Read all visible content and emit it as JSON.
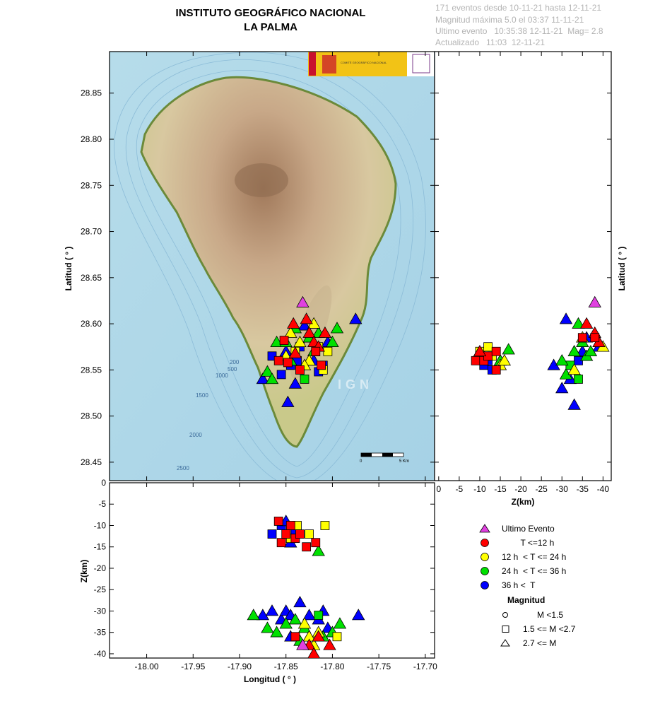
{
  "header": {
    "title_line1": "INSTITUTO GEOGRÁFICO NACIONAL",
    "title_line2": "LA PALMA",
    "info_line1": "171 eventos desde 10-11-21 hasta 12-11-21",
    "info_line2": "Magnitud máxima 5.0 el 03:37 11-11-21",
    "info_line3": "Ultimo evento   10:35:38 12-11-21  Mag= 2.8",
    "info_line4": "Actualizado   11:03  12-11-21"
  },
  "map": {
    "watermark": "IGN",
    "scale_left": "0",
    "scale_right": "5 Km",
    "contours": [
      "200",
      "500",
      "1000",
      "1500",
      "2000",
      "2500"
    ],
    "logo": "COMITÉ GEOGRÁFICO NACIONAL"
  },
  "legend": {
    "time_classes": [
      {
        "label": "Ultimo Evento",
        "color": "#e040e0",
        "shape": "triangle"
      },
      {
        "label": "        T <=12 h",
        "color": "#ff0000",
        "shape": "circle"
      },
      {
        "label": "12 h  < T <= 24 h",
        "color": "#ffff00",
        "shape": "circle"
      },
      {
        "label": "24 h  < T <= 36 h",
        "color": "#00e000",
        "shape": "circle"
      },
      {
        "label": "36 h <  T",
        "color": "#0000ff",
        "shape": "circle"
      }
    ],
    "magnitude_title": "Magnitud",
    "magnitude_classes": [
      {
        "label": "      M <1.5",
        "shape": "circle"
      },
      {
        "label": "1.5 <= M <2.7",
        "shape": "square"
      },
      {
        "label": "2.7 <= M",
        "shape": "triangle"
      }
    ]
  },
  "chart_data": [
    {
      "type": "scatter",
      "panel": "map",
      "xlabel": "",
      "ylabel": "Latitud ( ° )",
      "xlim": [
        -18.04,
        -17.69
      ],
      "ylim": [
        28.43,
        28.895
      ],
      "yticks": [
        "28.45",
        "28.50",
        "28.55",
        "28.60",
        "28.65",
        "28.70",
        "28.75",
        "28.80",
        "28.85"
      ],
      "series": [
        {
          "color": "#0000ff",
          "points": [
            [
              -17.875,
              28.54,
              3
            ],
            [
              -17.865,
              28.565,
              2
            ],
            [
              -17.85,
              28.57,
              3
            ],
            [
              -17.855,
              28.545,
              2
            ],
            [
              -17.848,
              28.515,
              3
            ],
            [
              -17.84,
              28.535,
              3
            ],
            [
              -17.835,
              28.575,
              2
            ],
            [
              -17.82,
              28.56,
              3
            ],
            [
              -17.81,
              28.555,
              2
            ],
            [
              -17.805,
              28.58,
              3
            ],
            [
              -17.775,
              28.605,
              3
            ],
            [
              -17.845,
              28.555,
              2
            ],
            [
              -17.83,
              28.598,
              3
            ],
            [
              -17.815,
              28.548,
              2
            ],
            [
              -17.838,
              28.56,
              2
            ]
          ]
        },
        {
          "color": "#00e000",
          "points": [
            [
              -17.87,
              28.548,
              3
            ],
            [
              -17.86,
              28.58,
              3
            ],
            [
              -17.845,
              28.56,
              3
            ],
            [
              -17.84,
              28.595,
              3
            ],
            [
              -17.825,
              28.585,
              3
            ],
            [
              -17.815,
              28.59,
              3
            ],
            [
              -17.8,
              28.58,
              3
            ],
            [
              -17.795,
              28.595,
              3
            ],
            [
              -17.83,
              28.54,
              2
            ],
            [
              -17.85,
              28.58,
              3
            ],
            [
              -17.82,
              28.57,
              3
            ],
            [
              -17.865,
              28.54,
              3
            ]
          ]
        },
        {
          "color": "#ffff00",
          "points": [
            [
              -17.85,
              28.565,
              3
            ],
            [
              -17.835,
              28.58,
              3
            ],
            [
              -17.825,
              28.56,
              3
            ],
            [
              -17.815,
              28.575,
              2
            ],
            [
              -17.805,
              28.57,
              2
            ],
            [
              -17.83,
              28.555,
              3
            ],
            [
              -17.845,
              28.59,
              3
            ],
            [
              -17.82,
              28.6,
              3
            ],
            [
              -17.81,
              28.55,
              2
            ],
            [
              -17.84,
              28.57,
              2
            ]
          ]
        },
        {
          "color": "#ff0000",
          "points": [
            [
              -17.858,
              28.56,
              2
            ],
            [
              -17.848,
              28.558,
              2
            ],
            [
              -17.84,
              28.568,
              3
            ],
            [
              -17.835,
              28.55,
              2
            ],
            [
              -17.825,
              28.59,
              3
            ],
            [
              -17.82,
              28.58,
              3
            ],
            [
              -17.815,
              28.575,
              3
            ],
            [
              -17.808,
              28.59,
              3
            ],
            [
              -17.818,
              28.57,
              2
            ],
            [
              -17.842,
              28.6,
              3
            ],
            [
              -17.852,
              28.582,
              2
            ],
            [
              -17.828,
              28.605,
              3
            ],
            [
              -17.812,
              28.555,
              2
            ]
          ]
        },
        {
          "color": "#e040e0",
          "points": [
            [
              -17.832,
              28.623,
              3
            ]
          ]
        }
      ]
    },
    {
      "type": "scatter",
      "panel": "lat-depth",
      "xlabel": "Z(km)",
      "ylabel": "Latitud ( ° )",
      "xlim": [
        1,
        -42
      ],
      "ylim": [
        28.43,
        28.895
      ],
      "xticks": [
        "0",
        "-5",
        "-10",
        "-15",
        "-20",
        "-25",
        "-30",
        "-35",
        "-40"
      ],
      "series": [
        {
          "color": "#0000ff",
          "points": [
            [
              -11,
              28.555,
              2
            ],
            [
              -13,
              28.55,
              2
            ],
            [
              -15,
              28.56,
              3
            ],
            [
              -28,
              28.555,
              3
            ],
            [
              -30,
              28.53,
              3
            ],
            [
              -31,
              28.605,
              3
            ],
            [
              -33,
              28.512,
              3
            ],
            [
              -34,
              28.56,
              2
            ],
            [
              -35,
              28.57,
              3
            ],
            [
              -36,
              28.585,
              3
            ],
            [
              -32,
              28.54,
              3
            ],
            [
              -39,
              28.575,
              3
            ],
            [
              -10,
              28.565,
              2
            ],
            [
              -12,
              28.56,
              2
            ]
          ]
        },
        {
          "color": "#00e000",
          "points": [
            [
              -11,
              28.565,
              3
            ],
            [
              -15,
              28.56,
              3
            ],
            [
              -17,
              28.572,
              3
            ],
            [
              -31,
              28.545,
              3
            ],
            [
              -32,
              28.555,
              2
            ],
            [
              -33,
              28.57,
              3
            ],
            [
              -34,
              28.6,
              3
            ],
            [
              -35,
              28.58,
              3
            ],
            [
              -36,
              28.565,
              3
            ],
            [
              -37,
              28.57,
              3
            ],
            [
              -30,
              28.56,
              3
            ],
            [
              -34,
              28.54,
              2
            ]
          ]
        },
        {
          "color": "#ffff00",
          "points": [
            [
              -10,
              28.57,
              2
            ],
            [
              -13,
              28.565,
              2
            ],
            [
              -15,
              28.555,
              3
            ],
            [
              -16,
              28.56,
              3
            ],
            [
              -33,
              28.55,
              3
            ],
            [
              -35,
              28.585,
              3
            ],
            [
              -39,
              28.58,
              3
            ],
            [
              -40,
              28.575,
              3
            ],
            [
              -12,
              28.575,
              2
            ]
          ]
        },
        {
          "color": "#ff0000",
          "points": [
            [
              -9,
              28.56,
              2
            ],
            [
              -11,
              28.56,
              2
            ],
            [
              -12,
              28.565,
              2
            ],
            [
              -14,
              28.57,
              2
            ],
            [
              -14,
              28.55,
              2
            ],
            [
              -35,
              28.585,
              2
            ],
            [
              -36,
              28.6,
              3
            ],
            [
              -38,
              28.59,
              3
            ],
            [
              -39,
              28.58,
              3
            ],
            [
              -38,
              28.585,
              2
            ],
            [
              -10,
              28.57,
              3
            ]
          ]
        },
        {
          "color": "#e040e0",
          "points": [
            [
              -38,
              28.623,
              3
            ]
          ]
        }
      ]
    },
    {
      "type": "scatter",
      "panel": "lon-depth",
      "xlabel": "Longitud ( ° )",
      "ylabel": "Z(km)",
      "xlim": [
        -18.04,
        -17.69
      ],
      "ylim": [
        -41,
        0
      ],
      "xticks": [
        "-18.00",
        "-17.95",
        "-17.90",
        "-17.85",
        "-17.80",
        "-17.75",
        "-17.70"
      ],
      "yticks": [
        "0",
        "-5",
        "-10",
        "-15",
        "-20",
        "-25",
        "-30",
        "-35",
        "-40"
      ],
      "series": [
        {
          "color": "#0000ff",
          "points": [
            [
              -17.865,
              -12,
              2
            ],
            [
              -17.855,
              -10,
              2
            ],
            [
              -17.85,
              -9,
              3
            ],
            [
              -17.845,
              -14,
              3
            ],
            [
              -17.84,
              -11,
              2
            ],
            [
              -17.875,
              -31,
              3
            ],
            [
              -17.865,
              -30,
              3
            ],
            [
              -17.855,
              -32,
              3
            ],
            [
              -17.85,
              -30,
              3
            ],
            [
              -17.845,
              -31,
              3
            ],
            [
              -17.835,
              -28,
              3
            ],
            [
              -17.825,
              -31,
              3
            ],
            [
              -17.815,
              -32,
              3
            ],
            [
              -17.81,
              -30,
              3
            ],
            [
              -17.805,
              -34,
              3
            ],
            [
              -17.772,
              -31,
              3
            ],
            [
              -17.845,
              -36,
              3
            ]
          ]
        },
        {
          "color": "#00e000",
          "points": [
            [
              -17.885,
              -31,
              3
            ],
            [
              -17.87,
              -34,
              3
            ],
            [
              -17.86,
              -35,
              3
            ],
            [
              -17.85,
              -33,
              3
            ],
            [
              -17.84,
              -32,
              3
            ],
            [
              -17.83,
              -34,
              3
            ],
            [
              -17.815,
              -31,
              2
            ],
            [
              -17.81,
              -36,
              3
            ],
            [
              -17.8,
              -35,
              3
            ],
            [
              -17.792,
              -33,
              3
            ],
            [
              -17.815,
              -16,
              3
            ],
            [
              -17.835,
              -37,
              3
            ]
          ]
        },
        {
          "color": "#ffff00",
          "points": [
            [
              -17.838,
              -10,
              2
            ],
            [
              -17.825,
              -12,
              2
            ],
            [
              -17.808,
              -10,
              2
            ],
            [
              -17.83,
              -33,
              3
            ],
            [
              -17.82,
              -38,
              3
            ],
            [
              -17.815,
              -35,
              3
            ],
            [
              -17.825,
              -36,
              3
            ],
            [
              -17.795,
              -36,
              2
            ],
            [
              -17.845,
              -13,
              2
            ]
          ]
        },
        {
          "color": "#ff0000",
          "points": [
            [
              -17.858,
              -9,
              2
            ],
            [
              -17.85,
              -12,
              2
            ],
            [
              -17.845,
              -10,
              2
            ],
            [
              -17.84,
              -13,
              2
            ],
            [
              -17.835,
              -12,
              2
            ],
            [
              -17.828,
              -15,
              2
            ],
            [
              -17.818,
              -14,
              2
            ],
            [
              -17.855,
              -14,
              2
            ],
            [
              -17.84,
              -36,
              2
            ],
            [
              -17.825,
              -38,
              3
            ],
            [
              -17.815,
              -36,
              3
            ],
            [
              -17.803,
              -38,
              3
            ],
            [
              -17.82,
              -40,
              3
            ]
          ]
        },
        {
          "color": "#e040e0",
          "points": [
            [
              -17.832,
              -38,
              3
            ]
          ]
        }
      ]
    }
  ]
}
